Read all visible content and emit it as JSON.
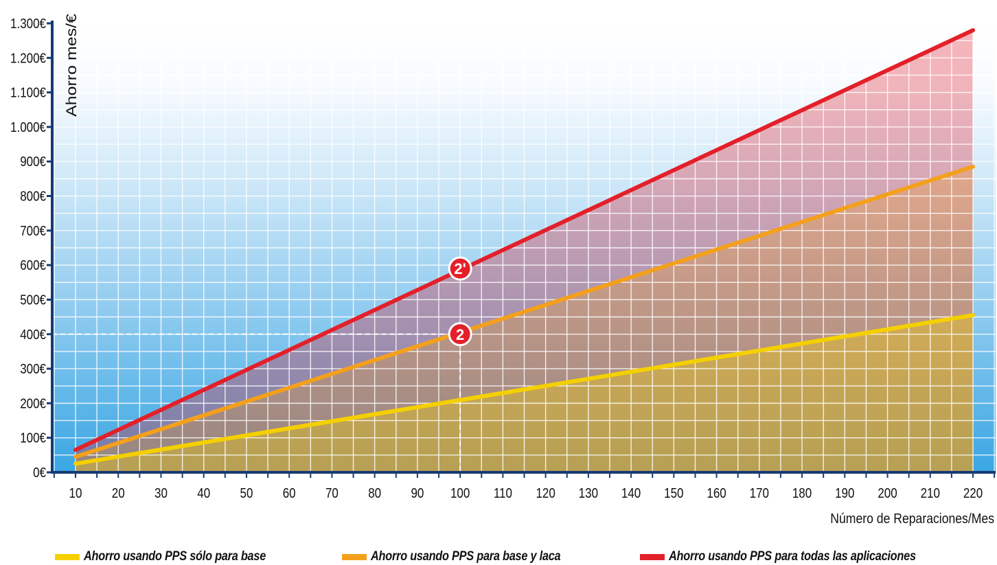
{
  "chart_data": {
    "type": "line",
    "title": "",
    "xlabel": "Número de Reparaciones/Mes",
    "ylabel": "Ahorro mes/€",
    "x": [
      10,
      20,
      30,
      40,
      50,
      60,
      70,
      80,
      90,
      100,
      110,
      120,
      130,
      140,
      150,
      160,
      170,
      180,
      190,
      200,
      210,
      220
    ],
    "x_tick_labels": [
      "10",
      "20",
      "30",
      "40",
      "50",
      "60",
      "70",
      "80",
      "90",
      "100",
      "110",
      "120",
      "130",
      "140",
      "150",
      "160",
      "170",
      "180",
      "190",
      "200",
      "210",
      "220"
    ],
    "y_ticks": [
      0,
      100,
      200,
      300,
      400,
      500,
      600,
      700,
      800,
      900,
      1000,
      1100,
      1200,
      1300
    ],
    "y_tick_labels": [
      "0€",
      "100€",
      "200€",
      "300€",
      "400€",
      "500€",
      "600€",
      "700€",
      "800€",
      "900€",
      "1.000€",
      "1.100€",
      "1.200€",
      "1.300€"
    ],
    "xlim": [
      10,
      220
    ],
    "ylim": [
      0,
      1300
    ],
    "grid": true,
    "legend_position": "bottom",
    "series": [
      {
        "name": "Ahorro usando PPS sólo para base",
        "color": "#f5d000",
        "endpoints": [
          [
            10,
            25
          ],
          [
            220,
            455
          ]
        ]
      },
      {
        "name": "Ahorro usando PPS para base y laca",
        "color": "#f4a01c",
        "endpoints": [
          [
            10,
            45
          ],
          [
            220,
            885
          ]
        ]
      },
      {
        "name": "Ahorro usando PPS para todas las aplicaciones",
        "color": "#e3202a",
        "endpoints": [
          [
            10,
            65
          ],
          [
            220,
            1280
          ]
        ]
      }
    ],
    "annotations": [
      {
        "label": "2",
        "x": 100,
        "y": 400,
        "series": "Ahorro usando PPS para base y laca",
        "reference_lines": true
      },
      {
        "label": "2'",
        "x": 100,
        "y": 590,
        "series": "Ahorro usando PPS para todas las aplicaciones"
      }
    ]
  }
}
